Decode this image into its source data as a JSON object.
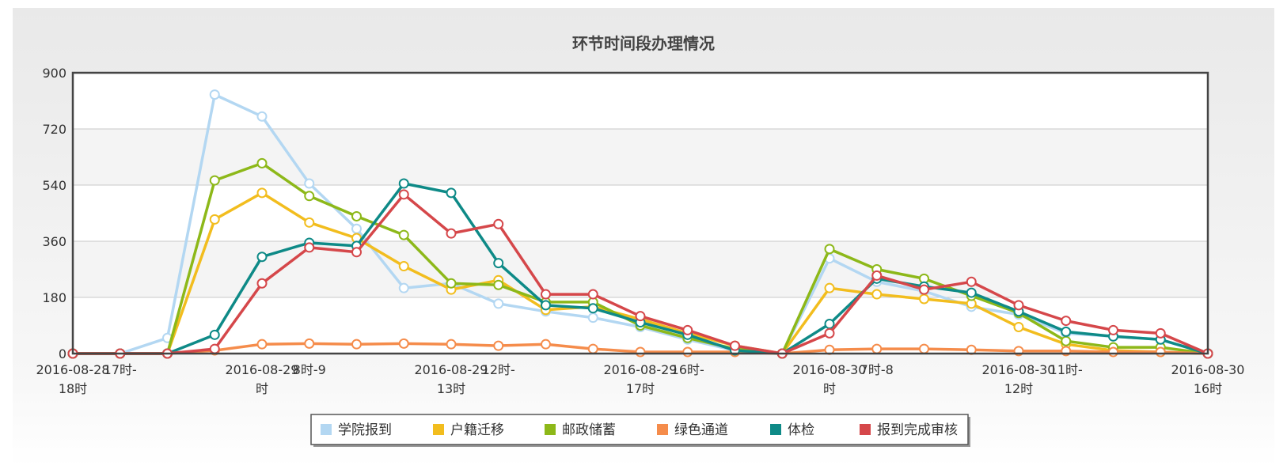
{
  "chart_data": {
    "type": "line",
    "title": "环节时间段办理情况",
    "ylim": [
      0,
      900
    ],
    "yticks": [
      0,
      180,
      360,
      540,
      720,
      900
    ],
    "grid": true,
    "legend_position": "bottom-center",
    "x_count": 25,
    "x_tick_labels": [
      {
        "i": 0,
        "lines": [
          "2016-08-28",
          "18时"
        ]
      },
      {
        "i": 1,
        "lines": [
          "17时-"
        ]
      },
      {
        "i": 4,
        "lines": [
          "2016-08-29",
          "时"
        ]
      },
      {
        "i": 5,
        "lines": [
          "8时-9"
        ]
      },
      {
        "i": 8,
        "lines": [
          "2016-08-29",
          "13时"
        ]
      },
      {
        "i": 9,
        "lines": [
          "12时-"
        ]
      },
      {
        "i": 12,
        "lines": [
          "2016-08-29",
          "17时"
        ]
      },
      {
        "i": 13,
        "lines": [
          "16时-"
        ]
      },
      {
        "i": 16,
        "lines": [
          "2016-08-30",
          "时"
        ]
      },
      {
        "i": 17,
        "lines": [
          "7时-8"
        ]
      },
      {
        "i": 20,
        "lines": [
          "2016-08-30",
          "12时"
        ]
      },
      {
        "i": 21,
        "lines": [
          "11时-"
        ]
      },
      {
        "i": 24,
        "lines": [
          "2016-08-30",
          "16时"
        ]
      }
    ],
    "series": [
      {
        "name": "学院报到",
        "color": "#b3d7f2",
        "values": [
          0,
          0,
          50,
          830,
          760,
          545,
          400,
          210,
          225,
          160,
          135,
          115,
          85,
          45,
          10,
          0,
          305,
          230,
          200,
          150,
          125,
          65,
          55,
          45,
          0
        ]
      },
      {
        "name": "户籍迁移",
        "color": "#f2bd1e",
        "values": [
          0,
          0,
          0,
          430,
          515,
          420,
          370,
          280,
          205,
          235,
          140,
          150,
          110,
          65,
          25,
          0,
          210,
          190,
          175,
          160,
          85,
          30,
          10,
          5,
          0
        ]
      },
      {
        "name": "邮政储蓄",
        "color": "#8db819",
        "values": [
          0,
          0,
          0,
          555,
          610,
          505,
          440,
          380,
          225,
          220,
          165,
          165,
          90,
          50,
          15,
          0,
          335,
          270,
          240,
          185,
          130,
          40,
          20,
          20,
          0
        ]
      },
      {
        "name": "绿色通道",
        "color": "#f58c4b",
        "values": [
          0,
          0,
          0,
          10,
          30,
          32,
          30,
          32,
          30,
          25,
          30,
          15,
          5,
          5,
          5,
          0,
          12,
          15,
          15,
          12,
          8,
          8,
          5,
          5,
          0
        ]
      },
      {
        "name": "体检",
        "color": "#0e8a87",
        "values": [
          0,
          0,
          0,
          60,
          310,
          355,
          345,
          545,
          515,
          290,
          155,
          145,
          100,
          60,
          10,
          0,
          95,
          240,
          215,
          195,
          135,
          70,
          55,
          45,
          0
        ]
      },
      {
        "name": "报到完成审核",
        "color": "#d5474a",
        "values": [
          0,
          0,
          0,
          15,
          225,
          340,
          325,
          510,
          385,
          415,
          190,
          190,
          120,
          75,
          25,
          0,
          65,
          250,
          205,
          230,
          155,
          105,
          75,
          65,
          0
        ]
      }
    ]
  }
}
